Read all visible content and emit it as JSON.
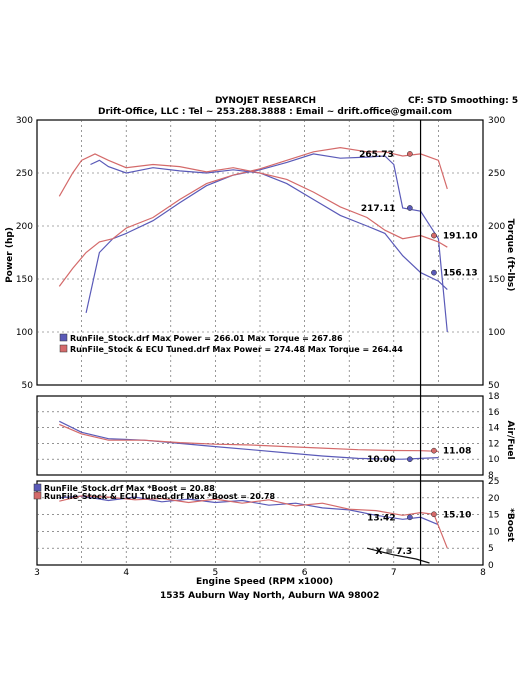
{
  "header": {
    "title": "DYNOJET RESEARCH",
    "cf_label": "CF: STD  Smoothing: 5",
    "contact": "Drift-Office, LLC : Tel ~ 253.288.3888 : Email ~ drift.office@gmail.com"
  },
  "footer": {
    "x_axis_label": "Engine Speed (RPM x1000)",
    "address": "1535 Auburn Way North, Auburn WA  98002"
  },
  "colors": {
    "stock": "#5a5ab8",
    "tuned": "#d46a6a",
    "black": "#111111"
  },
  "chart_data": [
    {
      "type": "line",
      "name_left_axis": "Power (hp)",
      "name_right_axis": "Torque (ft-lbs)",
      "xlim": [
        3,
        8
      ],
      "ylim_left": [
        50,
        300
      ],
      "ylim_right": [
        50,
        300
      ],
      "x_ticks": [
        "3",
        "4",
        "5",
        "6",
        "7",
        "8"
      ],
      "y_ticks_left": [
        "50",
        "100",
        "150",
        "200",
        "250",
        "300"
      ],
      "y_ticks_right": [
        "50",
        "100",
        "150",
        "200",
        "250",
        "300"
      ],
      "legend": [
        "RunFile_Stock.drf Max Power = 266.01        Max Torque = 267.86",
        "RunFile_Stock & ECU Tuned.drf Max Power = 274.48      Max Torque = 264.44"
      ],
      "annotations": [
        "265.73",
        "217.11",
        "191.10",
        "156.13"
      ],
      "series": [
        {
          "name": "Stock Power",
          "x": [
            3.55,
            3.7,
            3.85,
            4.0,
            4.3,
            4.6,
            4.9,
            5.2,
            5.5,
            5.8,
            6.1,
            6.4,
            6.7,
            6.9,
            7.0,
            7.1,
            7.3,
            7.5,
            7.6
          ],
          "values": [
            118,
            175,
            188,
            193,
            205,
            222,
            238,
            248,
            253,
            260,
            268,
            264,
            265,
            266,
            258,
            217,
            214,
            188,
            100
          ]
        },
        {
          "name": "Tuned Power",
          "x": [
            3.25,
            3.4,
            3.55,
            3.7,
            3.85,
            4.0,
            4.3,
            4.6,
            4.9,
            5.2,
            5.5,
            5.8,
            6.1,
            6.4,
            6.7,
            6.9,
            7.1,
            7.3,
            7.5,
            7.6
          ],
          "values": [
            143,
            160,
            175,
            185,
            188,
            198,
            208,
            225,
            240,
            248,
            254,
            262,
            270,
            274,
            270,
            270,
            266,
            268,
            262,
            235
          ]
        },
        {
          "name": "Stock Torque",
          "x": [
            3.6,
            3.7,
            3.8,
            4.0,
            4.3,
            4.6,
            4.9,
            5.2,
            5.5,
            5.8,
            6.1,
            6.4,
            6.7,
            6.9,
            7.1,
            7.3,
            7.5,
            7.6
          ],
          "values": [
            258,
            262,
            256,
            250,
            255,
            252,
            250,
            253,
            250,
            240,
            225,
            210,
            200,
            193,
            172,
            156,
            148,
            140
          ]
        },
        {
          "name": "Tuned Torque",
          "x": [
            3.25,
            3.4,
            3.5,
            3.65,
            3.8,
            4.0,
            4.3,
            4.6,
            4.9,
            5.2,
            5.5,
            5.8,
            6.1,
            6.4,
            6.7,
            6.9,
            7.1,
            7.3,
            7.5,
            7.6
          ],
          "values": [
            228,
            250,
            262,
            268,
            262,
            255,
            258,
            256,
            251,
            255,
            250,
            244,
            232,
            218,
            208,
            196,
            188,
            191,
            185,
            180
          ]
        }
      ]
    },
    {
      "type": "line",
      "name_right_axis": "Air/Fuel",
      "xlim": [
        3,
        8
      ],
      "ylim_right": [
        8,
        18
      ],
      "y_ticks_right": [
        "8",
        "10",
        "12",
        "14",
        "16",
        "18"
      ],
      "annotations": [
        "10.00",
        "11.08"
      ],
      "series": [
        {
          "name": "Stock AFR",
          "x": [
            3.25,
            3.5,
            3.8,
            4.2,
            4.6,
            5.0,
            5.4,
            5.8,
            6.2,
            6.6,
            7.0,
            7.1,
            7.3,
            7.5
          ],
          "values": [
            14.8,
            13.4,
            12.6,
            12.4,
            12.0,
            11.6,
            11.2,
            10.8,
            10.4,
            10.1,
            10.0,
            10.0,
            10.1,
            10.2
          ]
        },
        {
          "name": "Tuned AFR",
          "x": [
            3.25,
            3.5,
            3.8,
            4.2,
            4.6,
            5.0,
            5.4,
            5.8,
            6.2,
            6.6,
            7.0,
            7.3,
            7.5
          ],
          "values": [
            14.4,
            13.2,
            12.4,
            12.4,
            12.1,
            11.9,
            11.8,
            11.6,
            11.4,
            11.2,
            11.1,
            11.08,
            11.0
          ]
        }
      ]
    },
    {
      "type": "line",
      "name_right_axis": "*Boost",
      "xlim": [
        3,
        8
      ],
      "ylim_right": [
        0,
        25
      ],
      "y_ticks_right": [
        "0",
        "5",
        "10",
        "15",
        "20",
        "25"
      ],
      "legend": [
        "RunFile_Stock.drf Max *Boost = 20.88",
        "RunFile_Stock & ECU Tuned.drf Max *Boost = 20.78"
      ],
      "annotations": [
        "13.42",
        "15.10",
        "X = 7.3"
      ],
      "series": [
        {
          "name": "Stock Boost",
          "x": [
            3.25,
            3.5,
            3.8,
            4.1,
            4.4,
            4.7,
            5.0,
            5.3,
            5.6,
            5.9,
            6.2,
            6.5,
            6.8,
            7.1,
            7.3,
            7.5
          ],
          "values": [
            20.0,
            20.5,
            19.2,
            20.2,
            18.8,
            19.6,
            18.6,
            19.2,
            17.8,
            18.4,
            17.0,
            16.4,
            14.8,
            13.6,
            14.2,
            12.0
          ]
        },
        {
          "name": "Tuned Boost",
          "x": [
            3.25,
            3.5,
            3.8,
            4.1,
            4.4,
            4.7,
            5.0,
            5.3,
            5.6,
            5.9,
            6.2,
            6.5,
            6.8,
            7.1,
            7.3,
            7.45,
            7.6
          ],
          "values": [
            19.0,
            20.6,
            20.2,
            19.4,
            19.8,
            18.6,
            19.6,
            18.4,
            19.4,
            17.6,
            18.4,
            16.6,
            16.2,
            14.8,
            15.6,
            15.1,
            5.0
          ]
        },
        {
          "name": "Black Trace",
          "x": [
            6.7,
            7.0,
            7.25,
            7.4
          ],
          "values": [
            5.0,
            3.0,
            1.8,
            0.6
          ]
        }
      ]
    }
  ]
}
